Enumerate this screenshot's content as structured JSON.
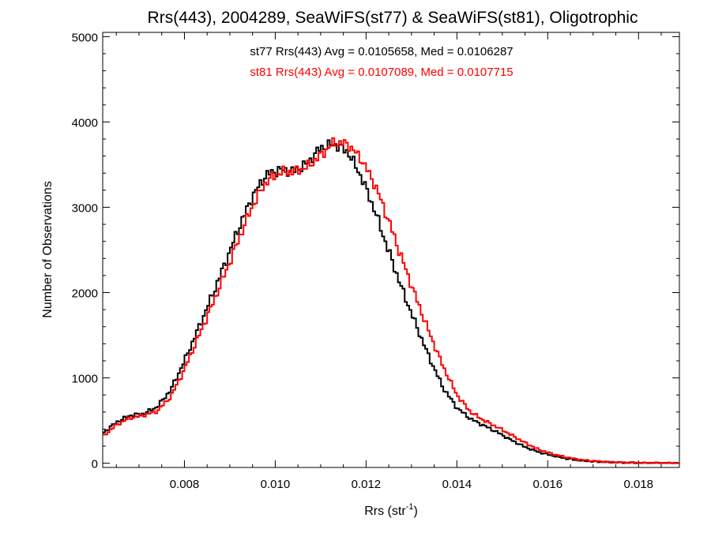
{
  "chart_data": {
    "type": "line",
    "title": "Rrs(443), 2004289, SeaWiFS(st77) & SeaWiFS(st81), Oligotrophic",
    "xlabel": "Rrs (str",
    "xlabel_superscript": "-1",
    "xlabel_close": ")",
    "ylabel": "Number of Observations",
    "xlim": [
      0.0062,
      0.0189
    ],
    "ylim": [
      -50,
      5050
    ],
    "xticks": [
      0.008,
      0.01,
      0.012,
      0.014,
      0.016,
      0.018
    ],
    "xtick_labels": [
      "0.008",
      "0.010",
      "0.012",
      "0.014",
      "0.016",
      "0.018"
    ],
    "yticks": [
      0,
      1000,
      2000,
      3000,
      4000,
      5000
    ],
    "ytick_labels": [
      "0",
      "1000",
      "2000",
      "3000",
      "4000",
      "5000"
    ],
    "grid": false,
    "annotations": [
      {
        "text": "st77 Rrs(443) Avg = 0.0105658, Med = 0.0106287",
        "color": "#000000"
      },
      {
        "text": "st81 Rrs(443) Avg = 0.0107089, Med = 0.0107715",
        "color": "#ff0000"
      }
    ],
    "series": [
      {
        "color": "#000000",
        "x": [
          0.0062,
          0.0065,
          0.0068,
          0.0071,
          0.0074,
          0.0077,
          0.008,
          0.0083,
          0.0086,
          0.0089,
          0.0092,
          0.0095,
          0.0098,
          0.0101,
          0.0104,
          0.0107,
          0.011,
          0.0113,
          0.0116,
          0.0119,
          0.0122,
          0.0125,
          0.0128,
          0.0131,
          0.0134,
          0.0137,
          0.014,
          0.0143,
          0.0146,
          0.0149,
          0.0152,
          0.0155,
          0.0158,
          0.0161,
          0.0164,
          0.0167,
          0.017,
          0.0173,
          0.0176,
          0.0179,
          0.0182,
          0.0185,
          0.0189
        ],
        "y": [
          350,
          480,
          560,
          580,
          660,
          860,
          1200,
          1570,
          1950,
          2350,
          2760,
          3130,
          3380,
          3440,
          3420,
          3510,
          3700,
          3740,
          3650,
          3350,
          2950,
          2480,
          2030,
          1620,
          1230,
          880,
          650,
          520,
          440,
          360,
          270,
          190,
          130,
          90,
          55,
          32,
          20,
          12,
          8,
          5,
          3,
          2,
          2
        ]
      },
      {
        "color": "#ff0000",
        "x": [
          0.0062,
          0.0065,
          0.0068,
          0.0071,
          0.0074,
          0.0077,
          0.008,
          0.0083,
          0.0086,
          0.0089,
          0.0092,
          0.0095,
          0.0098,
          0.0101,
          0.0104,
          0.0107,
          0.011,
          0.0113,
          0.0116,
          0.0119,
          0.0122,
          0.0125,
          0.0128,
          0.0131,
          0.0134,
          0.0137,
          0.014,
          0.0143,
          0.0146,
          0.0149,
          0.0152,
          0.0155,
          0.0158,
          0.0161,
          0.0164,
          0.0167,
          0.017,
          0.0173,
          0.0176,
          0.0179,
          0.0182,
          0.0185,
          0.0189
        ],
        "y": [
          310,
          450,
          530,
          560,
          610,
          780,
          1100,
          1470,
          1840,
          2230,
          2630,
          3020,
          3300,
          3410,
          3420,
          3470,
          3610,
          3760,
          3740,
          3560,
          3260,
          2840,
          2380,
          1940,
          1520,
          1130,
          800,
          600,
          500,
          420,
          330,
          240,
          160,
          110,
          70,
          42,
          26,
          16,
          10,
          6,
          4,
          3,
          2
        ]
      }
    ]
  }
}
